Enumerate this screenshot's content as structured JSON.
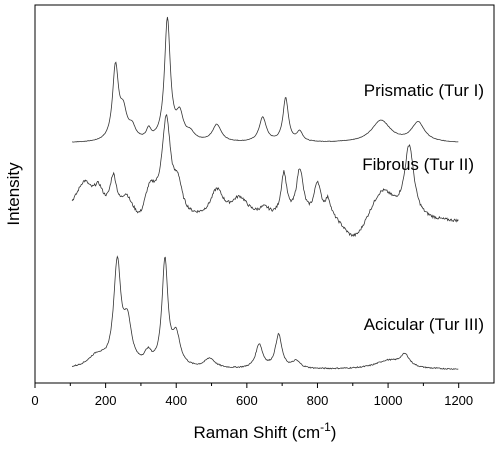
{
  "chart_data": {
    "type": "line",
    "xlabel": "Raman Shift (cm",
    "xlabel_sup": "-1",
    "xlabel_close": ")",
    "ylabel": "Intensity",
    "xlim": [
      0,
      1300
    ],
    "xticks": [
      0,
      200,
      400,
      600,
      800,
      1000,
      1200
    ],
    "yticks_shown": false,
    "grid": false,
    "series": [
      {
        "name": "Prismatic (Tur I)",
        "x_range": [
          105,
          1200
        ],
        "baseline": 0,
        "peaks": [
          {
            "x": 228,
            "h": 0.6,
            "w": 10
          },
          {
            "x": 250,
            "h": 0.22,
            "w": 12
          },
          {
            "x": 275,
            "h": 0.1,
            "w": 12
          },
          {
            "x": 322,
            "h": 0.08,
            "w": 8
          },
          {
            "x": 375,
            "h": 1.0,
            "w": 10
          },
          {
            "x": 410,
            "h": 0.2,
            "w": 12
          },
          {
            "x": 440,
            "h": 0.06,
            "w": 14
          },
          {
            "x": 515,
            "h": 0.14,
            "w": 15
          },
          {
            "x": 645,
            "h": 0.2,
            "w": 12
          },
          {
            "x": 710,
            "h": 0.36,
            "w": 9
          },
          {
            "x": 750,
            "h": 0.08,
            "w": 10
          },
          {
            "x": 980,
            "h": 0.18,
            "w": 32
          },
          {
            "x": 1085,
            "h": 0.16,
            "w": 22
          }
        ]
      },
      {
        "name": "Fibrous (Tur II)",
        "x_range": [
          105,
          1200
        ],
        "baseline": 0.22,
        "peaks": [
          {
            "x": 140,
            "h": 0.22,
            "w": 25
          },
          {
            "x": 180,
            "h": 0.2,
            "w": 18
          },
          {
            "x": 222,
            "h": 0.32,
            "w": 12
          },
          {
            "x": 258,
            "h": 0.15,
            "w": 16
          },
          {
            "x": 325,
            "h": 0.25,
            "w": 25
          },
          {
            "x": 372,
            "h": 0.82,
            "w": 15
          },
          {
            "x": 405,
            "h": 0.25,
            "w": 14
          },
          {
            "x": 515,
            "h": 0.24,
            "w": 22
          },
          {
            "x": 580,
            "h": 0.18,
            "w": 30
          },
          {
            "x": 650,
            "h": 0.08,
            "w": 20
          },
          {
            "x": 705,
            "h": 0.38,
            "w": 10
          },
          {
            "x": 750,
            "h": 0.42,
            "w": 12
          },
          {
            "x": 800,
            "h": 0.3,
            "w": 12
          },
          {
            "x": 830,
            "h": 0.15,
            "w": 10
          },
          {
            "x": 985,
            "h": 0.25,
            "w": 40
          },
          {
            "x": 1060,
            "h": 0.62,
            "w": 16
          }
        ]
      },
      {
        "name": "Acicular (Tur III)",
        "x_range": [
          105,
          1200
        ],
        "baseline": 0.02,
        "peaks": [
          {
            "x": 175,
            "h": 0.1,
            "w": 30
          },
          {
            "x": 233,
            "h": 0.85,
            "w": 12
          },
          {
            "x": 262,
            "h": 0.35,
            "w": 14
          },
          {
            "x": 320,
            "h": 0.1,
            "w": 12
          },
          {
            "x": 368,
            "h": 0.88,
            "w": 10
          },
          {
            "x": 400,
            "h": 0.25,
            "w": 14
          },
          {
            "x": 495,
            "h": 0.08,
            "w": 18
          },
          {
            "x": 635,
            "h": 0.2,
            "w": 12
          },
          {
            "x": 690,
            "h": 0.28,
            "w": 11
          },
          {
            "x": 740,
            "h": 0.06,
            "w": 14
          },
          {
            "x": 1000,
            "h": 0.07,
            "w": 45
          },
          {
            "x": 1048,
            "h": 0.1,
            "w": 16
          }
        ]
      }
    ]
  }
}
